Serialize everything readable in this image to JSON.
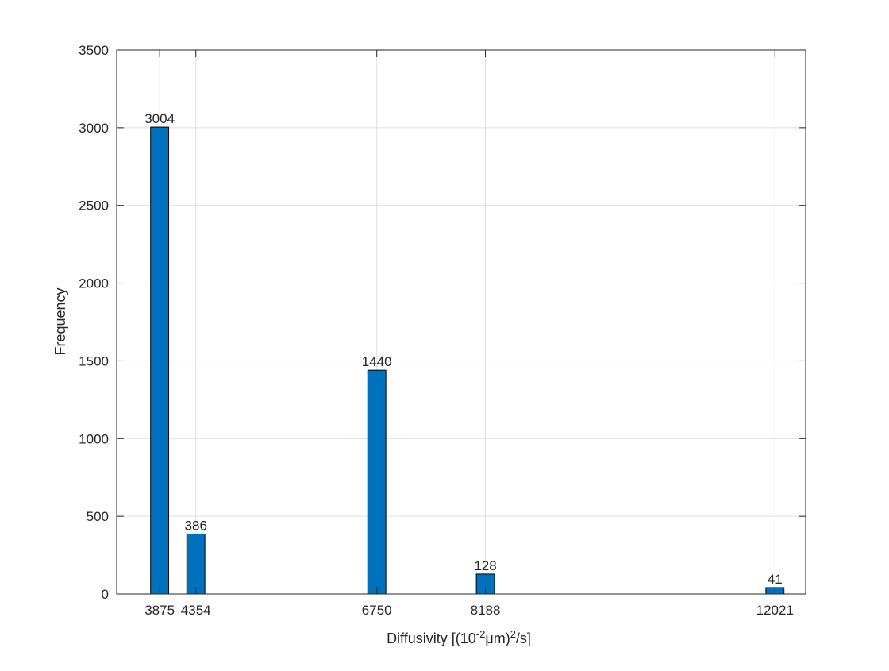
{
  "chart_data": {
    "type": "bar",
    "categories": [
      "3875",
      "4354",
      "6750",
      "8188",
      "12021"
    ],
    "x": [
      3875,
      4354,
      6750,
      8188,
      12021
    ],
    "values": [
      3004,
      386,
      1440,
      128,
      41
    ],
    "data_labels": [
      "3004",
      "386",
      "1440",
      "128",
      "41"
    ],
    "xlabel": "Diffusivity [(10^-2 μm)^2/s]",
    "xlabel_parts": {
      "pre": "Diffusivity [(10",
      "exp1": "-2",
      "mid": "μm)",
      "exp2": "2",
      "post": "/s]"
    },
    "ylabel": "Frequency",
    "x_tick_labels": [
      "3875",
      "4354",
      "6750",
      "8188",
      "12021"
    ],
    "y_tick_labels": [
      "0",
      "500",
      "1000",
      "1500",
      "2000",
      "2500",
      "3000",
      "3500"
    ],
    "y_ticks": [
      0,
      500,
      1000,
      1500,
      2000,
      2500,
      3000,
      3500
    ],
    "xlim": [
      3306,
      12428
    ],
    "ylim": [
      0,
      3500
    ],
    "bar_width": 240,
    "grid": true,
    "colors": {
      "bar_fill": "#0072BD",
      "bar_edge": "#000000",
      "grid": "#DFDFDF",
      "axis": "#262626"
    }
  }
}
